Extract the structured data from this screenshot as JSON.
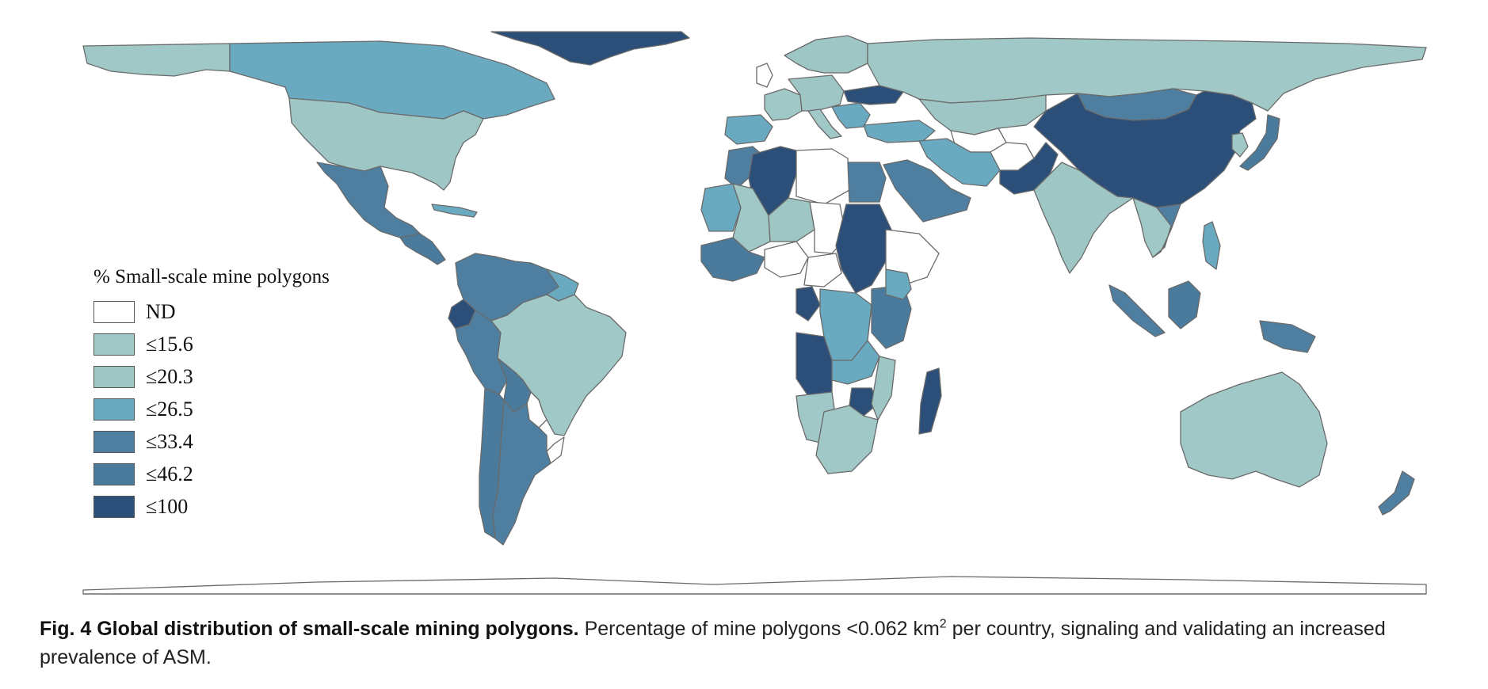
{
  "colors": {
    "nd": "#ffffff",
    "c15": "#9fc8c6",
    "c20": "#9dc6c4",
    "c26": "#6aaac0",
    "c33": "#4e7fa0",
    "c46": "#4a7b9c",
    "c100": "#2b4f78",
    "border": "#666666"
  },
  "legend": {
    "title": "% Small-scale mine polygons",
    "items": [
      {
        "label": "ND",
        "color": "#ffffff"
      },
      {
        "label": "≤15.6",
        "color": "#9fc8c6"
      },
      {
        "label": "≤20.3",
        "color": "#9dc6c4"
      },
      {
        "label": "≤26.5",
        "color": "#6aaac0"
      },
      {
        "label": "≤33.4",
        "color": "#4e7fa0"
      },
      {
        "label": "≤46.2",
        "color": "#4a7b9c"
      },
      {
        "label": "≤100",
        "color": "#2b4f78"
      }
    ]
  },
  "caption": {
    "fig_label": "Fig. 4 Global distribution of small-scale mining polygons.",
    "text_before_sup": "Percentage of mine polygons <0.062 km",
    "sup": "2",
    "text_after_sup": " per country, signaling and validating an increased prevalence of ASM."
  }
}
